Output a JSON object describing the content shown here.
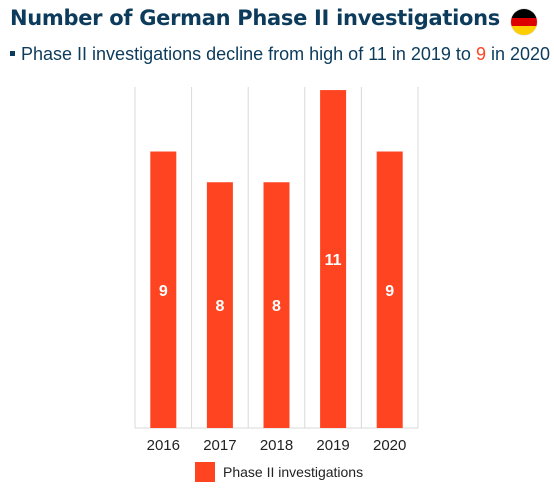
{
  "title": "Number of German Phase II investigations",
  "subtitle": {
    "prefix": "Phase II investigations decline from high of 11 in 2019 to ",
    "highlight": "9",
    "suffix": " in 2020"
  },
  "flag_colors": [
    "#000000",
    "#dd0000",
    "#ffce00"
  ],
  "colors": {
    "bar": "#ff4422",
    "highlight": "#ff4422",
    "text": "#0c3b5c",
    "grid": "#d9d9d9",
    "label": "#ffffff"
  },
  "chart_data": {
    "type": "bar",
    "categories": [
      "2016",
      "2017",
      "2018",
      "2019",
      "2020"
    ],
    "series": [
      {
        "name": "Phase II investigations",
        "values": [
          9,
          8,
          8,
          11,
          9
        ]
      }
    ],
    "ylim": [
      0,
      11.1
    ],
    "grid": "vertical",
    "legend": "bottom"
  }
}
